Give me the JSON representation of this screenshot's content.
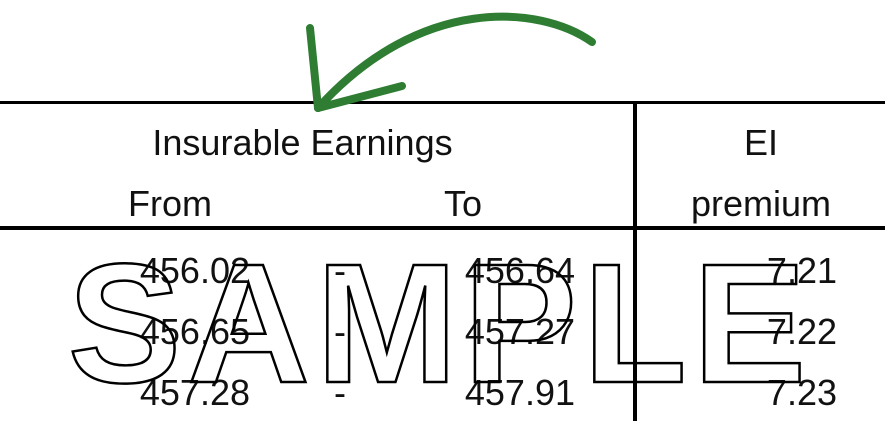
{
  "header": {
    "group_label": "Insurable Earnings",
    "from_label": "From",
    "to_label": "To",
    "premium_top": "EI",
    "premium_bottom": "premium"
  },
  "rows": [
    {
      "from": "456.02",
      "dash": "-",
      "to": "456.64",
      "premium": "7.21"
    },
    {
      "from": "456.65",
      "dash": "-",
      "to": "457.27",
      "premium": "7.22"
    },
    {
      "from": "457.28",
      "dash": "-",
      "to": "457.91",
      "premium": "7.23"
    }
  ],
  "watermark": "SAMPLE",
  "colors": {
    "arrow": "#2e7d32",
    "rule": "#000000"
  },
  "decorations": {
    "arrow_icon": "curved-arrow-icon"
  }
}
